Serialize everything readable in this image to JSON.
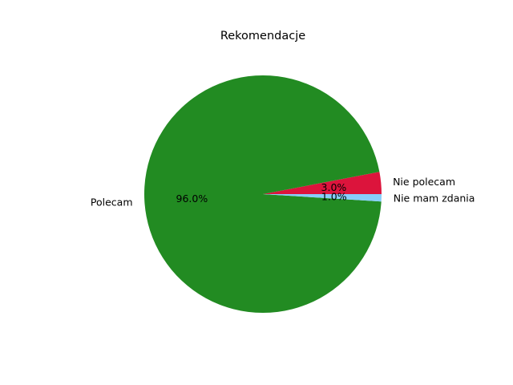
{
  "chart_data": {
    "type": "pie",
    "title": "Rekomendacje",
    "start_angle_deg": 0,
    "direction": "counterclockwise",
    "slices": [
      {
        "label": "Nie polecam",
        "value": 3.0,
        "percent_label": "3.0%",
        "color": "#dc143c"
      },
      {
        "label": "Polecam",
        "value": 96.0,
        "percent_label": "96.0%",
        "color": "#228b22"
      },
      {
        "label": "Nie mam zdania",
        "value": 1.0,
        "percent_label": "1.0%",
        "color": "#87cefa"
      }
    ],
    "legend": "none"
  }
}
